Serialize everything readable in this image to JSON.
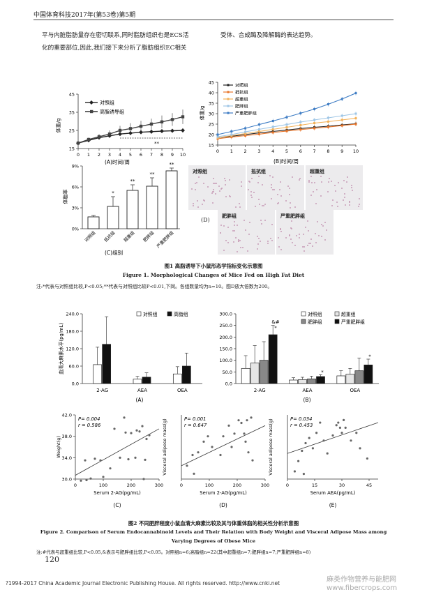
{
  "header": {
    "journal": "中国体育科技2017年(第53卷)第5期"
  },
  "intro": {
    "line1": "平与内脏脂肪量存在密切联系,同时脂肪组织也是ECS活",
    "line2": "化的重要部位,因此,我们接下来分析了脂肪组织EC相关",
    "right1": "受体、合成酶及降解酶的表达趋势。"
  },
  "colors": {
    "ctrl": "#222222",
    "hfd": "#444444",
    "resist": "#e8762b",
    "over": "#f3b25a",
    "obese": "#9fc6e6",
    "severe": "#3d7cc4",
    "tissue": "#ecebed"
  },
  "figure1": {
    "panelA": {
      "label": "(A)时间/周",
      "ylabel": "体重/g",
      "legend": [
        "对照组",
        "高脂诱导组"
      ],
      "sig": "**"
    },
    "panelB": {
      "label": "(B)时间/周",
      "ylabel": "体重/g",
      "legend": [
        "对照组",
        "抵抗组",
        "超重组",
        "肥胖组",
        "严重肥胖组"
      ]
    },
    "panelC": {
      "label": "(C)组别",
      "ylabel": "体脂率"
    },
    "panelD": {
      "label": "(D)",
      "groups": [
        "对照组",
        "抵抗组",
        "超重组",
        "肥胖组",
        "严重肥胖组"
      ]
    },
    "caption_cn": "图1   高脂诱导下小鼠形态学指标变化示意图",
    "caption_en": "Figure 1.   Morphological Changes of Mice Fed on High Fat Diet",
    "note": "注:*代表与对照组比较,P<0.05;**代表与对照组比较P<0.01,下同。各组数量均为n=10。图D放大倍数为200。"
  },
  "figure2": {
    "panelA": {
      "label": "(A)",
      "ylabel": "血清大麻素水平(pg/mL)",
      "legend": [
        "对照组",
        "高脂组"
      ]
    },
    "panelB": {
      "label": "(B)",
      "legend": [
        "对照组",
        "超重组",
        "肥胖组",
        "严重肥胖组"
      ],
      "sig_2ag": "&#",
      "sig_2ag2": "*",
      "sig_aea": "*",
      "sig_oea": "*"
    },
    "panelC": {
      "label": "(C)",
      "xlabel": "Serum 2-AG(pg/mL)",
      "ylabel": "Weight(g)",
      "p": "P= 0.004",
      "r": "r = 0.586"
    },
    "panelD": {
      "label": "(D)",
      "xlabel": "Serum 2-AG(pg/mL)",
      "ylabel": "Visceral adipose mass(g)",
      "p": "P= 0.001",
      "r": "r = 0.647"
    },
    "panelE": {
      "label": "(E)",
      "xlabel": "Serum AEA(pg/mL)",
      "ylabel": "Visceral adipose mass(g)",
      "p": "P= 0.034",
      "r": "r = 0.453"
    },
    "caption_cn": "图2   不同肥胖程度小鼠血清大麻素比较及其与体重体脂的相关性分析示意图",
    "caption_en1": "Figure 2.   Comparison of Serum Endocannabinoid Levels and Their Relation with Body Weight and Visceral Adipose Mass among",
    "caption_en2": "Varying Degrees of Obese Mice",
    "note": "注:#代表与超重组比较,P<0.05,&表示与肥胖组比较,P<0.05。对照组n=6;高脂组n=22(其中超重组n=7;肥胖组n=7;严重肥胖组n=8)"
  },
  "page_number": "120",
  "footer": "?1994-2017 China Academic Journal Electronic Publishing House. All rights reserved.    http://www.cnki.net",
  "watermark": {
    "line1": "麻类作物营养与能肥网",
    "line2": "www.fibercrops.com"
  },
  "chart_data": [
    {
      "type": "line",
      "id": "fig1A",
      "x": [
        0,
        1,
        2,
        3,
        4,
        5,
        6,
        7,
        8,
        9,
        10
      ],
      "xlim": [
        0,
        10
      ],
      "ylim": [
        15,
        45
      ],
      "yticks": [
        15,
        25,
        35,
        45
      ],
      "series": [
        {
          "name": "对照组",
          "values": [
            18,
            19.5,
            21,
            22,
            23,
            23.5,
            24,
            24.3,
            24.6,
            24.8,
            25
          ],
          "err": [
            1,
            1,
            1,
            1,
            1,
            1,
            1,
            1,
            1,
            1,
            1.2
          ]
        },
        {
          "name": "高脂诱导组",
          "values": [
            18,
            20,
            21.5,
            23,
            25,
            26,
            27.3,
            28.5,
            29.7,
            31,
            32.5
          ],
          "err": [
            1,
            1,
            1.5,
            2,
            2.5,
            3,
            3,
            3,
            3.5,
            3.5,
            4
          ]
        }
      ]
    },
    {
      "type": "line",
      "id": "fig1B",
      "x": [
        0,
        1,
        2,
        3,
        4,
        5,
        6,
        7,
        8,
        9,
        10
      ],
      "xlim": [
        0,
        10
      ],
      "ylim": [
        15,
        45
      ],
      "yticks": [
        15,
        20,
        25,
        30,
        35,
        40,
        45
      ],
      "series": [
        {
          "name": "对照组",
          "values": [
            18.5,
            19.2,
            20,
            20.8,
            21.5,
            22.2,
            22.9,
            23.5,
            24,
            24.6,
            25.2
          ]
        },
        {
          "name": "抵抗组",
          "values": [
            18,
            18.8,
            19.5,
            20.2,
            21,
            21.7,
            22.4,
            23,
            23.6,
            24.3,
            25
          ]
        },
        {
          "name": "超重组",
          "values": [
            18.5,
            19.5,
            20.5,
            21.5,
            22.5,
            23.5,
            24.5,
            25.5,
            26.2,
            27,
            27.8
          ]
        },
        {
          "name": "肥胖组",
          "values": [
            19,
            20,
            21.3,
            22.5,
            23.7,
            24.8,
            26,
            27,
            28,
            29,
            30
          ]
        },
        {
          "name": "严重肥胖组",
          "values": [
            20,
            21.5,
            23,
            24.8,
            26.5,
            28.3,
            30.2,
            32.2,
            34.5,
            37,
            39.8
          ]
        }
      ]
    },
    {
      "type": "bar",
      "id": "fig1C",
      "categories": [
        "对照组",
        "抵抗组",
        "超重组",
        "肥胖组",
        "严重肥胖组"
      ],
      "values": [
        1.7,
        3.2,
        5.5,
        6.1,
        8.3
      ],
      "err": [
        0.2,
        1.4,
        0.8,
        1.2,
        0.4
      ],
      "sig": [
        "",
        "*",
        "**",
        "**",
        "**"
      ],
      "ylim": [
        0,
        9
      ],
      "yticks": [
        "0%",
        "3%",
        "6%",
        "9%"
      ]
    },
    {
      "type": "bar",
      "id": "fig2A",
      "categories": [
        "2-AG",
        "AEA",
        "OEA"
      ],
      "ylim": [
        0,
        240
      ],
      "yticks": [
        0,
        60,
        120,
        180,
        240
      ],
      "series": [
        {
          "name": "对照组",
          "values": [
            65,
            15,
            33
          ],
          "err": [
            60,
            10,
            25
          ]
        },
        {
          "name": "高脂组",
          "values": [
            135,
            22,
            60
          ],
          "err": [
            95,
            15,
            45
          ]
        }
      ]
    },
    {
      "type": "bar",
      "id": "fig2B",
      "categories": [
        "2-AG",
        "AEA",
        "OEA"
      ],
      "ylim": [
        0,
        300
      ],
      "yticks": [
        0,
        50,
        100,
        150,
        200,
        250,
        300
      ],
      "series": [
        {
          "name": "对照组",
          "values": [
            65,
            15,
            33
          ],
          "err": [
            55,
            10,
            22
          ]
        },
        {
          "name": "超重组",
          "values": [
            88,
            17,
            40
          ],
          "err": [
            75,
            10,
            25
          ]
        },
        {
          "name": "肥胖组",
          "values": [
            100,
            20,
            55
          ],
          "err": [
            80,
            12,
            55
          ]
        },
        {
          "name": "严重肥胖组",
          "values": [
            210,
            30,
            80
          ],
          "err": [
            40,
            8,
            25
          ]
        }
      ]
    },
    {
      "type": "scatter",
      "id": "fig2C",
      "xlim": [
        0,
        300
      ],
      "ylim": [
        30,
        42
      ],
      "xticks": [
        0,
        100,
        200,
        300
      ],
      "yticks": [
        30,
        34,
        38,
        42
      ],
      "x": [
        20,
        35,
        40,
        55,
        70,
        90,
        100,
        125,
        140,
        160,
        175,
        180,
        190,
        200,
        215,
        220,
        230,
        240,
        245,
        250,
        255,
        265
      ],
      "y": [
        29.7,
        33.5,
        29.8,
        30.1,
        33.8,
        33.5,
        30.4,
        32,
        39.4,
        34,
        41.5,
        38.7,
        33.7,
        38.6,
        34,
        39.1,
        38.9,
        39.9,
        30,
        33.6,
        37.5,
        38.2
      ],
      "fit": [
        [
          0,
          30.7
        ],
        [
          300,
          39.4
        ]
      ]
    },
    {
      "type": "scatter",
      "id": "fig2D",
      "xlim": [
        0,
        300
      ],
      "ylim": [
        1,
        3.4
      ],
      "xticks": [
        0,
        100,
        200,
        300
      ],
      "x": [
        20,
        40,
        45,
        60,
        80,
        95,
        110,
        140,
        150,
        170,
        180,
        190,
        205,
        215,
        225,
        230,
        235,
        240,
        250,
        255
      ],
      "y": [
        1.5,
        1.9,
        1.2,
        2.0,
        2.4,
        2.6,
        2.2,
        1.9,
        2.6,
        3.0,
        2.2,
        2.7,
        3.2,
        3.1,
        2.7,
        2.4,
        3.2,
        2.0,
        3.3,
        1.7
      ],
      "fit": [
        [
          0,
          1.5
        ],
        [
          300,
          3.0
        ]
      ]
    },
    {
      "type": "scatter",
      "id": "fig2E",
      "xlim": [
        0,
        50
      ],
      "xticks": [
        0,
        15,
        30,
        45
      ],
      "x": [
        4,
        6,
        8,
        9,
        10,
        12,
        14,
        16,
        18,
        20,
        22,
        25,
        27,
        28,
        29,
        30,
        31,
        32,
        35,
        38,
        40,
        44
      ],
      "y": [
        1.3,
        1.7,
        2.1,
        1.2,
        2.4,
        2.6,
        2.2,
        2.8,
        3.2,
        2.5,
        2.0,
        2.7,
        3.1,
        3.2,
        3.0,
        2.8,
        3.3,
        3.0,
        2.5,
        2.8,
        2.2,
        1.8
      ],
      "fit": [
        [
          0,
          2.0
        ],
        [
          50,
          3.2
        ]
      ]
    }
  ]
}
